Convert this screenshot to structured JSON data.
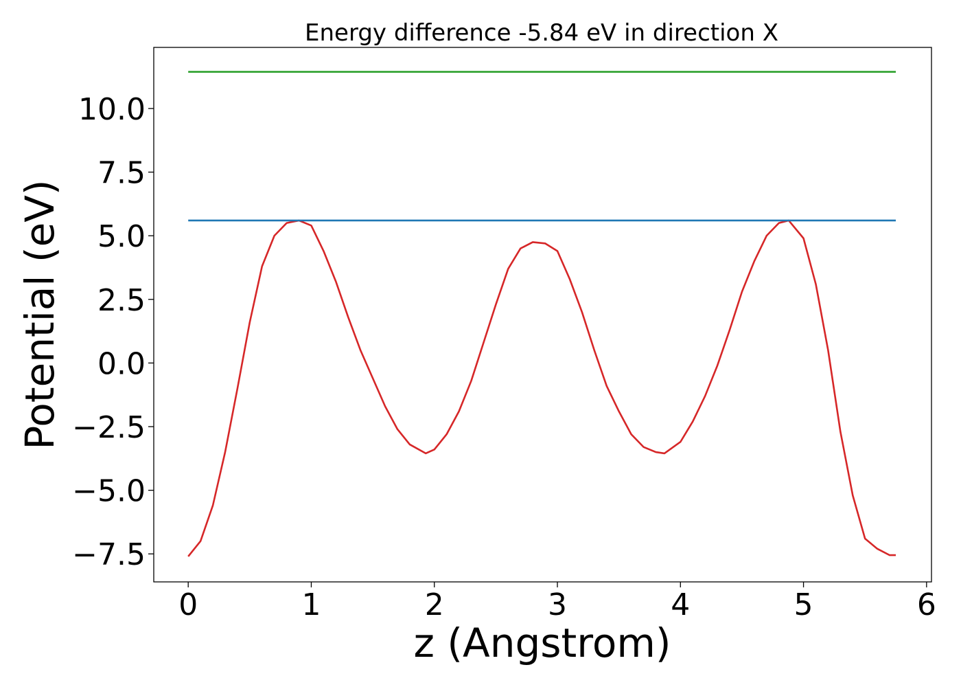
{
  "chart_data": {
    "type": "line",
    "title": "Energy difference -5.84 eV in direction X",
    "xlabel": "z (Angstrom)",
    "ylabel": "Potential (eV)",
    "xlim": [
      -0.28,
      6.04
    ],
    "ylim": [
      -8.6,
      12.4
    ],
    "grid": false,
    "x_ticks": [
      0,
      1,
      2,
      3,
      4,
      5,
      6
    ],
    "x_tick_labels": [
      "0",
      "1",
      "2",
      "3",
      "4",
      "5",
      "6"
    ],
    "y_ticks": [
      -7.5,
      -5.0,
      -2.5,
      0.0,
      2.5,
      5.0,
      7.5,
      10.0
    ],
    "y_tick_labels": [
      "−7.5",
      "−5.0",
      "−2.5",
      "0.0",
      "2.5",
      "5.0",
      "7.5",
      "10.0"
    ],
    "series": [
      {
        "color": "#d62728",
        "x": [
          0.0,
          0.1,
          0.2,
          0.3,
          0.4,
          0.5,
          0.6,
          0.7,
          0.8,
          0.9,
          1.0,
          1.1,
          1.2,
          1.3,
          1.4,
          1.5,
          1.6,
          1.7,
          1.8,
          1.93,
          2.0,
          2.1,
          2.2,
          2.3,
          2.4,
          2.5,
          2.6,
          2.7,
          2.8,
          2.9,
          3.0,
          3.1,
          3.2,
          3.3,
          3.4,
          3.5,
          3.6,
          3.7,
          3.8,
          3.87,
          4.0,
          4.1,
          4.2,
          4.3,
          4.4,
          4.5,
          4.6,
          4.7,
          4.8,
          4.88,
          5.0,
          5.1,
          5.2,
          5.3,
          5.4,
          5.5,
          5.6,
          5.7,
          5.75
        ],
        "y": [
          -7.6,
          -7.0,
          -5.6,
          -3.5,
          -1.0,
          1.6,
          3.8,
          5.0,
          5.5,
          5.6,
          5.4,
          4.4,
          3.2,
          1.8,
          0.5,
          -0.6,
          -1.7,
          -2.6,
          -3.2,
          -3.55,
          -3.4,
          -2.8,
          -1.9,
          -0.7,
          0.8,
          2.3,
          3.7,
          4.5,
          4.75,
          4.7,
          4.4,
          3.3,
          2.0,
          0.5,
          -0.9,
          -1.9,
          -2.8,
          -3.3,
          -3.5,
          -3.55,
          -3.1,
          -2.3,
          -1.3,
          -0.1,
          1.3,
          2.8,
          4.0,
          5.0,
          5.5,
          5.6,
          4.9,
          3.1,
          0.5,
          -2.7,
          -5.2,
          -6.9,
          -7.3,
          -7.55,
          -7.55
        ]
      },
      {
        "color": "#1f77b4",
        "x": [
          0.0,
          5.75
        ],
        "y": [
          5.6,
          5.6
        ]
      },
      {
        "color": "#2ca02c",
        "x": [
          0.0,
          5.75
        ],
        "y": [
          11.44,
          11.44
        ]
      }
    ]
  }
}
